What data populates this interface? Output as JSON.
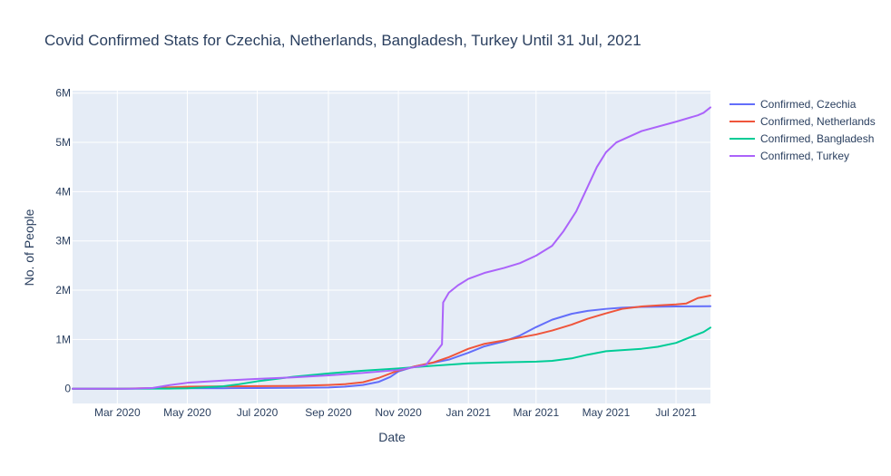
{
  "chart_data": {
    "type": "line",
    "title": "Covid Confirmed Stats for Czechia, Netherlands, Bangladesh, Turkey Until 31 Jul, 2021",
    "xlabel": "Date",
    "ylabel": "No. of People",
    "xlim": [
      "2020-01-22",
      "2021-07-31"
    ],
    "ylim": [
      -300000,
      6050000
    ],
    "grid": true,
    "legend_position": "top-right",
    "plot_background": "#e5ecf6",
    "x_ticks": [
      {
        "date": "2020-03-01",
        "label": "Mar 2020"
      },
      {
        "date": "2020-05-01",
        "label": "May 2020"
      },
      {
        "date": "2020-07-01",
        "label": "Jul 2020"
      },
      {
        "date": "2020-09-01",
        "label": "Sep 2020"
      },
      {
        "date": "2020-11-01",
        "label": "Nov 2020"
      },
      {
        "date": "2021-01-01",
        "label": "Jan 2021"
      },
      {
        "date": "2021-03-01",
        "label": "Mar 2021"
      },
      {
        "date": "2021-05-01",
        "label": "May 2021"
      },
      {
        "date": "2021-07-01",
        "label": "Jul 2021"
      }
    ],
    "y_ticks": [
      {
        "value": 0,
        "label": "0"
      },
      {
        "value": 1000000,
        "label": "1M"
      },
      {
        "value": 2000000,
        "label": "2M"
      },
      {
        "value": 3000000,
        "label": "3M"
      },
      {
        "value": 4000000,
        "label": "4M"
      },
      {
        "value": 5000000,
        "label": "5M"
      },
      {
        "value": 6000000,
        "label": "6M"
      }
    ],
    "series": [
      {
        "name": "Confirmed, Czechia",
        "color": "#636efa",
        "points": [
          [
            "2020-01-22",
            0
          ],
          [
            "2020-03-01",
            0
          ],
          [
            "2020-04-01",
            3500
          ],
          [
            "2020-05-01",
            7700
          ],
          [
            "2020-06-01",
            9400
          ],
          [
            "2020-07-01",
            12000
          ],
          [
            "2020-08-01",
            17000
          ],
          [
            "2020-09-01",
            25000
          ],
          [
            "2020-09-15",
            40000
          ],
          [
            "2020-10-01",
            75000
          ],
          [
            "2020-10-15",
            140000
          ],
          [
            "2020-10-25",
            240000
          ],
          [
            "2020-11-01",
            350000
          ],
          [
            "2020-11-15",
            450000
          ],
          [
            "2020-12-01",
            525000
          ],
          [
            "2020-12-15",
            590000
          ],
          [
            "2021-01-01",
            730000
          ],
          [
            "2021-01-15",
            860000
          ],
          [
            "2021-02-01",
            960000
          ],
          [
            "2021-02-15",
            1080000
          ],
          [
            "2021-03-01",
            1250000
          ],
          [
            "2021-03-15",
            1400000
          ],
          [
            "2021-04-01",
            1520000
          ],
          [
            "2021-04-15",
            1580000
          ],
          [
            "2021-05-01",
            1620000
          ],
          [
            "2021-05-15",
            1645000
          ],
          [
            "2021-06-01",
            1660000
          ],
          [
            "2021-07-01",
            1670000
          ],
          [
            "2021-07-31",
            1675000
          ]
        ]
      },
      {
        "name": "Confirmed, Netherlands",
        "color": "#ef553b",
        "points": [
          [
            "2020-01-22",
            0
          ],
          [
            "2020-03-01",
            0
          ],
          [
            "2020-04-01",
            14000
          ],
          [
            "2020-05-01",
            40000
          ],
          [
            "2020-06-01",
            47000
          ],
          [
            "2020-07-01",
            51000
          ],
          [
            "2020-08-01",
            57000
          ],
          [
            "2020-09-01",
            75000
          ],
          [
            "2020-09-15",
            90000
          ],
          [
            "2020-10-01",
            130000
          ],
          [
            "2020-10-15",
            220000
          ],
          [
            "2020-11-01",
            370000
          ],
          [
            "2020-11-15",
            450000
          ],
          [
            "2020-12-01",
            530000
          ],
          [
            "2020-12-15",
            640000
          ],
          [
            "2021-01-01",
            810000
          ],
          [
            "2021-01-15",
            910000
          ],
          [
            "2021-02-01",
            980000
          ],
          [
            "2021-02-15",
            1040000
          ],
          [
            "2021-03-01",
            1100000
          ],
          [
            "2021-03-15",
            1180000
          ],
          [
            "2021-04-01",
            1300000
          ],
          [
            "2021-04-15",
            1420000
          ],
          [
            "2021-05-01",
            1530000
          ],
          [
            "2021-05-15",
            1620000
          ],
          [
            "2021-06-01",
            1670000
          ],
          [
            "2021-06-15",
            1690000
          ],
          [
            "2021-07-01",
            1710000
          ],
          [
            "2021-07-10",
            1730000
          ],
          [
            "2021-07-20",
            1840000
          ],
          [
            "2021-07-31",
            1890000
          ]
        ]
      },
      {
        "name": "Confirmed, Bangladesh",
        "color": "#00cc96",
        "points": [
          [
            "2020-01-22",
            0
          ],
          [
            "2020-03-01",
            0
          ],
          [
            "2020-04-15",
            2000
          ],
          [
            "2020-05-01",
            8000
          ],
          [
            "2020-06-01",
            47000
          ],
          [
            "2020-06-15",
            90000
          ],
          [
            "2020-07-01",
            150000
          ],
          [
            "2020-08-01",
            240000
          ],
          [
            "2020-09-01",
            310000
          ],
          [
            "2020-10-01",
            365000
          ],
          [
            "2020-11-01",
            410000
          ],
          [
            "2020-12-01",
            465000
          ],
          [
            "2021-01-01",
            515000
          ],
          [
            "2021-02-01",
            535000
          ],
          [
            "2021-03-01",
            550000
          ],
          [
            "2021-03-15",
            565000
          ],
          [
            "2021-04-01",
            615000
          ],
          [
            "2021-04-15",
            690000
          ],
          [
            "2021-05-01",
            760000
          ],
          [
            "2021-06-01",
            810000
          ],
          [
            "2021-06-15",
            850000
          ],
          [
            "2021-07-01",
            930000
          ],
          [
            "2021-07-15",
            1060000
          ],
          [
            "2021-07-25",
            1150000
          ],
          [
            "2021-07-31",
            1240000
          ]
        ]
      },
      {
        "name": "Confirmed, Turkey",
        "color": "#ab63fa",
        "points": [
          [
            "2020-01-22",
            0
          ],
          [
            "2020-03-11",
            0
          ],
          [
            "2020-04-01",
            15000
          ],
          [
            "2020-04-15",
            70000
          ],
          [
            "2020-05-01",
            120000
          ],
          [
            "2020-06-01",
            165000
          ],
          [
            "2020-07-01",
            200000
          ],
          [
            "2020-08-01",
            230000
          ],
          [
            "2020-09-01",
            270000
          ],
          [
            "2020-10-01",
            320000
          ],
          [
            "2020-11-01",
            380000
          ],
          [
            "2020-11-25",
            480000
          ],
          [
            "2020-12-09",
            900000
          ],
          [
            "2020-12-10",
            1750000
          ],
          [
            "2020-12-15",
            1950000
          ],
          [
            "2020-12-23",
            2100000
          ],
          [
            "2021-01-01",
            2230000
          ],
          [
            "2021-01-15",
            2350000
          ],
          [
            "2021-02-01",
            2450000
          ],
          [
            "2021-02-15",
            2550000
          ],
          [
            "2021-03-01",
            2700000
          ],
          [
            "2021-03-15",
            2900000
          ],
          [
            "2021-03-25",
            3200000
          ],
          [
            "2021-04-05",
            3600000
          ],
          [
            "2021-04-15",
            4100000
          ],
          [
            "2021-04-23",
            4500000
          ],
          [
            "2021-05-01",
            4800000
          ],
          [
            "2021-05-10",
            5000000
          ],
          [
            "2021-06-01",
            5230000
          ],
          [
            "2021-07-01",
            5420000
          ],
          [
            "2021-07-20",
            5550000
          ],
          [
            "2021-07-25",
            5600000
          ],
          [
            "2021-07-31",
            5710000
          ]
        ]
      }
    ]
  }
}
